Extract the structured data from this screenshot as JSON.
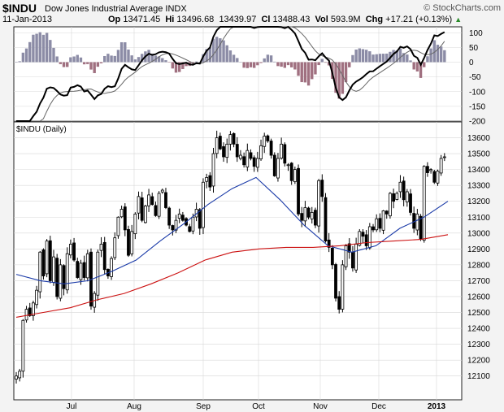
{
  "header": {
    "symbol": "$INDU",
    "name": "Dow Jones Industrial Average",
    "exchange": "INDX",
    "brand": "© StockCharts.com",
    "date": "11-Jan-2013",
    "op_label": "Op",
    "op": "13471.45",
    "hi_label": "Hi",
    "hi": "13496.68",
    "lo_value": "13439.97",
    "cl_label": "Cl",
    "cl": "13488.43",
    "vol_label": "Vol",
    "vol": "593.9M",
    "chg_label": "Chg",
    "chg": "+17.21 (+0.13%)",
    "chg_icon": "up-triangle-icon"
  },
  "colors": {
    "price": "#000000",
    "ma50": "#1a3aa8",
    "ma200": "#cc1111",
    "histo_pos": "#8c8ca6",
    "histo_neg": "#a07080",
    "ind_fast": "#000000",
    "ind_slow": "#666666"
  },
  "chart_data": [
    {
      "type": "line",
      "panel": "indicator",
      "ylim": [
        -200,
        120
      ],
      "yticks": [
        100,
        50,
        0,
        -50,
        -100,
        -150,
        -200
      ],
      "series": []
    },
    {
      "type": "candlestick",
      "panel": "price",
      "title": "$INDU (Daily)",
      "ylim": [
        11950,
        13700
      ],
      "yticks": [
        12100,
        12200,
        12300,
        12400,
        12500,
        12600,
        12700,
        12800,
        12900,
        13000,
        13100,
        13200,
        13300,
        13400,
        13500,
        13600
      ],
      "xticks": [
        "Jul",
        "Aug",
        "Sep",
        "Oct",
        "Nov",
        "Dec",
        "2013"
      ],
      "close_keypoints": [
        12100,
        12130,
        12450,
        12520,
        12480,
        12560,
        12640,
        12880,
        12730,
        12950,
        12700,
        12850,
        12600,
        12800,
        12650,
        12870,
        12930,
        12830,
        12720,
        12810,
        12720,
        12870,
        12540,
        12620,
        12880,
        12930,
        12770,
        12730,
        12840,
        12970,
        13100,
        13150,
        13020,
        12860,
        13010,
        13120,
        13230,
        13080,
        13170,
        13240,
        13180,
        13110,
        13250,
        13270,
        13160,
        13050,
        13020,
        13080,
        13120,
        13080,
        13050,
        13010,
        13100,
        13150,
        13030,
        13320,
        13350,
        13290,
        13500,
        13600,
        13530,
        13480,
        13560,
        13620,
        13560,
        13480,
        13490,
        13430,
        13520,
        13470,
        13420,
        13470,
        13550,
        13610,
        13580,
        13490,
        13360,
        13470,
        13560,
        13440,
        13430,
        13330,
        13400,
        13120,
        13080,
        13160,
        13100,
        13130,
        13050,
        13330,
        13230,
        12950,
        12910,
        12800,
        12590,
        12520,
        12800,
        12920,
        12880,
        12780,
        12930,
        13010,
        12980,
        12920,
        13040,
        13020,
        13090,
        13030,
        13140,
        13120,
        13250,
        13200,
        13250,
        13320,
        13210,
        13260,
        13130,
        13030,
        13120,
        12960,
        13420,
        13380,
        13400,
        13320,
        13390,
        13470,
        13480
      ],
      "ma50": [
        12740,
        12700,
        12680,
        12700,
        12760,
        12830,
        12950,
        13060,
        13180,
        13280,
        13350,
        13210,
        13050,
        12920,
        12880,
        12920,
        13030,
        13100,
        13200
      ],
      "ma200": [
        12470,
        12500,
        12530,
        12580,
        12620,
        12680,
        12750,
        12830,
        12880,
        12900,
        12910,
        12910,
        12920,
        12940,
        12950,
        12960,
        12990
      ]
    }
  ]
}
